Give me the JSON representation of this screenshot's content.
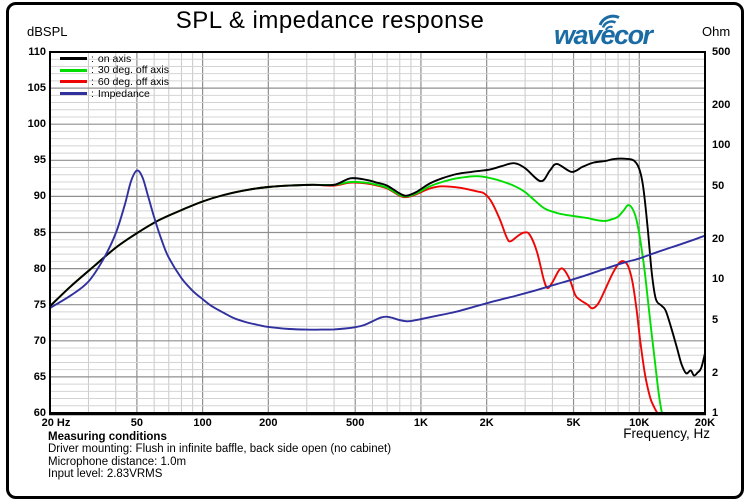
{
  "header": {
    "left_unit": "dBSPL",
    "title": "SPL & impedance response",
    "right_unit": "Ohm",
    "logo_text": "wavecor",
    "logo_color": "#1b6ca5"
  },
  "legend_separator": ":",
  "footer": {
    "heading": "Measuring conditions",
    "lines": [
      "Driver mounting: Flush in infinite baffle, back side open (no cabinet)",
      "Microphone distance: 1.0m",
      "Input level: 2.83VRMS"
    ]
  },
  "chart_data": {
    "type": "line",
    "title": "SPL & impedance response",
    "grid": {
      "minor_color": "#d4d4d4",
      "major_color": "#8f8f8f",
      "minor_v_color": "#c9c9c9",
      "border_color": "#000000"
    },
    "x_axis": {
      "label": "Frequency, Hz",
      "scale": "log",
      "min": 20,
      "max": 20000,
      "ticks": [
        {
          "f": 20,
          "label": "20 Hz"
        },
        {
          "f": 50,
          "label": "50"
        },
        {
          "f": 100,
          "label": "100"
        },
        {
          "f": 200,
          "label": "200"
        },
        {
          "f": 500,
          "label": "500"
        },
        {
          "f": 1000,
          "label": "1K"
        },
        {
          "f": 2000,
          "label": "2K"
        },
        {
          "f": 5000,
          "label": "5K"
        },
        {
          "f": 10000,
          "label": "10K"
        },
        {
          "f": 20000,
          "label": "20K"
        }
      ]
    },
    "y_left": {
      "unit": "dBSPL",
      "min": 60,
      "max": 110,
      "major_step": 5,
      "minor_step": 1,
      "ticks": [
        110,
        105,
        100,
        95,
        90,
        85,
        80,
        75,
        70,
        65,
        60
      ]
    },
    "y_right": {
      "unit": "Ohm",
      "scale": "log",
      "min": 1,
      "max": 500,
      "ticks": [
        500,
        200,
        100,
        50,
        20,
        10,
        5,
        2,
        1
      ]
    },
    "series": [
      {
        "id": "on-axis",
        "label": "on axis",
        "color": "#000000",
        "axis": "left",
        "points": [
          [
            20,
            74.8
          ],
          [
            25,
            77.6
          ],
          [
            32,
            80.4
          ],
          [
            40,
            82.9
          ],
          [
            50,
            84.9
          ],
          [
            63,
            86.7
          ],
          [
            80,
            88.1
          ],
          [
            100,
            89.3
          ],
          [
            125,
            90.2
          ],
          [
            160,
            90.9
          ],
          [
            200,
            91.3
          ],
          [
            250,
            91.5
          ],
          [
            320,
            91.6
          ],
          [
            400,
            91.6
          ],
          [
            475,
            92.5
          ],
          [
            560,
            92.3
          ],
          [
            630,
            91.9
          ],
          [
            700,
            91.5
          ],
          [
            800,
            90.4
          ],
          [
            860,
            90.1
          ],
          [
            950,
            90.6
          ],
          [
            1100,
            91.8
          ],
          [
            1250,
            92.5
          ],
          [
            1460,
            93.1
          ],
          [
            1700,
            93.4
          ],
          [
            2050,
            93.7
          ],
          [
            2350,
            94.2
          ],
          [
            2670,
            94.6
          ],
          [
            3000,
            93.9
          ],
          [
            3540,
            92.1
          ],
          [
            3900,
            93.6
          ],
          [
            4200,
            94.5
          ],
          [
            4900,
            93.4
          ],
          [
            5500,
            94.1
          ],
          [
            6200,
            94.7
          ],
          [
            7000,
            94.9
          ],
          [
            7700,
            95.2
          ],
          [
            8800,
            95.2
          ],
          [
            9500,
            94.9
          ],
          [
            10000,
            93.8
          ],
          [
            10400,
            91.5
          ],
          [
            10900,
            86.0
          ],
          [
            11400,
            79.5
          ],
          [
            11900,
            75.8
          ],
          [
            12600,
            74.9
          ],
          [
            13200,
            74.2
          ],
          [
            14000,
            71.8
          ],
          [
            14800,
            69.3
          ],
          [
            15600,
            66.8
          ],
          [
            16400,
            65.5
          ],
          [
            17200,
            65.9
          ],
          [
            17800,
            65.2
          ],
          [
            18500,
            65.6
          ],
          [
            19200,
            66.2
          ],
          [
            20000,
            68.3
          ]
        ]
      },
      {
        "id": "30-deg-off-axis",
        "label": "30 deg. off axis",
        "color": "#00dd00",
        "axis": "left",
        "points": [
          [
            20,
            74.8
          ],
          [
            25,
            77.6
          ],
          [
            32,
            80.4
          ],
          [
            40,
            82.9
          ],
          [
            50,
            84.9
          ],
          [
            63,
            86.7
          ],
          [
            80,
            88.1
          ],
          [
            100,
            89.3
          ],
          [
            125,
            90.2
          ],
          [
            160,
            90.9
          ],
          [
            200,
            91.3
          ],
          [
            250,
            91.5
          ],
          [
            320,
            91.6
          ],
          [
            400,
            91.6
          ],
          [
            475,
            92.0
          ],
          [
            560,
            91.9
          ],
          [
            630,
            91.6
          ],
          [
            700,
            91.2
          ],
          [
            800,
            90.2
          ],
          [
            860,
            90.0
          ],
          [
            950,
            90.4
          ],
          [
            1100,
            91.4
          ],
          [
            1250,
            92.0
          ],
          [
            1460,
            92.5
          ],
          [
            1800,
            92.8
          ],
          [
            2100,
            92.5
          ],
          [
            2400,
            92.0
          ],
          [
            2700,
            91.4
          ],
          [
            3000,
            90.6
          ],
          [
            3300,
            89.5
          ],
          [
            3700,
            88.3
          ],
          [
            4200,
            87.7
          ],
          [
            4700,
            87.4
          ],
          [
            5200,
            87.2
          ],
          [
            5800,
            87.0
          ],
          [
            6400,
            86.7
          ],
          [
            7000,
            86.6
          ],
          [
            7600,
            86.9
          ],
          [
            8000,
            87.2
          ],
          [
            8500,
            88.1
          ],
          [
            8900,
            88.8
          ],
          [
            9300,
            88.3
          ],
          [
            9700,
            86.8
          ],
          [
            10100,
            84.0
          ],
          [
            10600,
            79.5
          ],
          [
            11100,
            74.0
          ],
          [
            11700,
            68.0
          ],
          [
            12300,
            62.5
          ],
          [
            12700,
            60.0
          ]
        ]
      },
      {
        "id": "60-deg-off-axis",
        "label": "60 deg. off axis",
        "color": "#f00505",
        "axis": "left",
        "points": [
          [
            20,
            74.8
          ],
          [
            25,
            77.6
          ],
          [
            32,
            80.4
          ],
          [
            40,
            82.9
          ],
          [
            50,
            84.9
          ],
          [
            63,
            86.7
          ],
          [
            80,
            88.1
          ],
          [
            100,
            89.3
          ],
          [
            125,
            90.2
          ],
          [
            160,
            90.9
          ],
          [
            200,
            91.3
          ],
          [
            250,
            91.5
          ],
          [
            320,
            91.6
          ],
          [
            400,
            91.5
          ],
          [
            475,
            91.9
          ],
          [
            560,
            91.8
          ],
          [
            630,
            91.5
          ],
          [
            700,
            91.1
          ],
          [
            800,
            90.1
          ],
          [
            860,
            89.9
          ],
          [
            950,
            90.3
          ],
          [
            1100,
            91.1
          ],
          [
            1250,
            91.4
          ],
          [
            1500,
            91.2
          ],
          [
            1800,
            90.7
          ],
          [
            1950,
            90.4
          ],
          [
            2100,
            89.3
          ],
          [
            2300,
            86.8
          ],
          [
            2480,
            84.2
          ],
          [
            2580,
            83.8
          ],
          [
            2800,
            84.6
          ],
          [
            2980,
            85.0
          ],
          [
            3150,
            84.7
          ],
          [
            3400,
            82.3
          ],
          [
            3650,
            78.5
          ],
          [
            3800,
            77.3
          ],
          [
            4000,
            78.1
          ],
          [
            4300,
            79.8
          ],
          [
            4500,
            79.9
          ],
          [
            4800,
            78.5
          ],
          [
            5100,
            76.3
          ],
          [
            5400,
            75.6
          ],
          [
            5800,
            75.0
          ],
          [
            6100,
            74.5
          ],
          [
            6500,
            75.2
          ],
          [
            7000,
            77.2
          ],
          [
            7600,
            79.5
          ],
          [
            8100,
            80.8
          ],
          [
            8500,
            81.0
          ],
          [
            8900,
            80.3
          ],
          [
            9300,
            78.2
          ],
          [
            9700,
            74.5
          ],
          [
            10100,
            70.0
          ],
          [
            10600,
            65.5
          ],
          [
            11200,
            62.2
          ],
          [
            11700,
            60.8
          ],
          [
            12100,
            60.0
          ]
        ]
      },
      {
        "id": "impedance",
        "label": "Impedance",
        "color": "#30309f",
        "axis": "right",
        "points": [
          [
            20,
            6.1
          ],
          [
            25,
            7.6
          ],
          [
            30,
            9.6
          ],
          [
            35,
            14
          ],
          [
            40,
            22
          ],
          [
            44,
            36
          ],
          [
            47,
            54
          ],
          [
            50,
            65
          ],
          [
            53,
            58
          ],
          [
            56,
            43
          ],
          [
            60,
            29
          ],
          [
            65,
            19.5
          ],
          [
            70,
            14.5
          ],
          [
            80,
            10.2
          ],
          [
            90,
            8.2
          ],
          [
            100,
            7.1
          ],
          [
            110,
            6.3
          ],
          [
            125,
            5.6
          ],
          [
            140,
            5.1
          ],
          [
            160,
            4.75
          ],
          [
            180,
            4.55
          ],
          [
            200,
            4.4
          ],
          [
            250,
            4.25
          ],
          [
            300,
            4.2
          ],
          [
            350,
            4.2
          ],
          [
            400,
            4.22
          ],
          [
            450,
            4.28
          ],
          [
            500,
            4.38
          ],
          [
            550,
            4.55
          ],
          [
            600,
            4.85
          ],
          [
            650,
            5.15
          ],
          [
            690,
            5.25
          ],
          [
            730,
            5.18
          ],
          [
            800,
            4.95
          ],
          [
            870,
            4.85
          ],
          [
            950,
            4.95
          ],
          [
            1100,
            5.2
          ],
          [
            1300,
            5.5
          ],
          [
            1500,
            5.8
          ],
          [
            1800,
            6.3
          ],
          [
            2200,
            6.9
          ],
          [
            2700,
            7.5
          ],
          [
            3300,
            8.2
          ],
          [
            4000,
            9.0
          ],
          [
            5000,
            10.0
          ],
          [
            6000,
            11.0
          ],
          [
            7000,
            12.0
          ],
          [
            8500,
            13.3
          ],
          [
            10000,
            14.3
          ],
          [
            12000,
            15.9
          ],
          [
            14000,
            17.3
          ],
          [
            16000,
            18.6
          ],
          [
            18000,
            19.9
          ],
          [
            20000,
            21.2
          ]
        ]
      }
    ]
  }
}
